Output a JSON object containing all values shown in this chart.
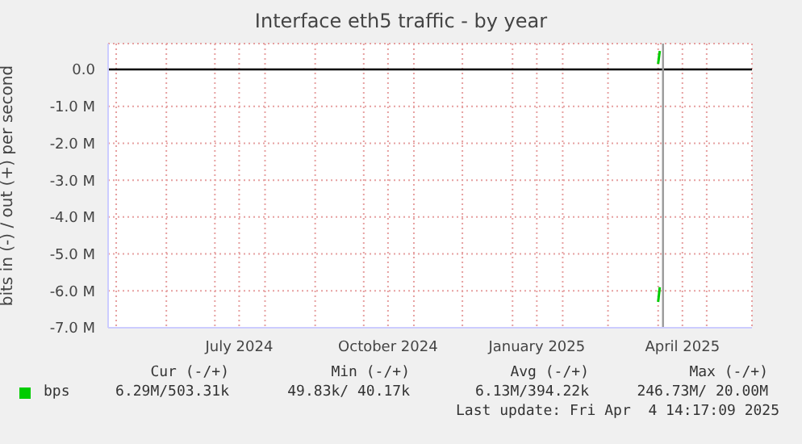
{
  "chart_data": {
    "type": "line",
    "title": "Interface eth5 traffic - by year",
    "ylabel": "bits in (-) / out (+) per second",
    "xlim": [
      "2024-04-26",
      "2025-05-29"
    ],
    "xticks": [
      {
        "value": "2024-05-01",
        "label": null
      },
      {
        "value": "2024-06-01",
        "label": null
      },
      {
        "value": "2024-07-01",
        "label": null
      },
      {
        "value": "2024-07-16",
        "label": "July 2024"
      },
      {
        "value": "2024-08-01",
        "label": null
      },
      {
        "value": "2024-09-01",
        "label": null
      },
      {
        "value": "2024-10-01",
        "label": null
      },
      {
        "value": "2024-10-16",
        "label": "October 2024"
      },
      {
        "value": "2024-11-01",
        "label": null
      },
      {
        "value": "2024-12-01",
        "label": null
      },
      {
        "value": "2025-01-01",
        "label": null
      },
      {
        "value": "2025-01-16",
        "label": "January 2025"
      },
      {
        "value": "2025-02-01",
        "label": null
      },
      {
        "value": "2025-03-01",
        "label": null
      },
      {
        "value": "2025-04-01",
        "label": null
      },
      {
        "value": "2025-04-16",
        "label": "April 2025"
      },
      {
        "value": "2025-05-01",
        "label": null
      }
    ],
    "ylim": [
      -7,
      0.7
    ],
    "yticks": [
      {
        "value": -7,
        "label": "-7.0 M"
      },
      {
        "value": -6,
        "label": "-6.0 M"
      },
      {
        "value": -5,
        "label": "-5.0 M"
      },
      {
        "value": -4,
        "label": "-4.0 M"
      },
      {
        "value": -3,
        "label": "-3.0 M"
      },
      {
        "value": -2,
        "label": "-2.0 M"
      },
      {
        "value": -1,
        "label": "-1.0 M"
      },
      {
        "value": 0,
        "label": "0.0"
      }
    ],
    "series": [
      {
        "name": "bps",
        "color": "#00cc00",
        "x": [
          "2025-04-01",
          "2025-04-02"
        ],
        "values": [
          0.15,
          0.5
        ]
      },
      {
        "color": "#00cc00",
        "x": [
          "2025-04-01",
          "2025-04-02"
        ],
        "values": [
          -6.3,
          -5.9
        ]
      }
    ],
    "ref_lines": [
      {
        "axis": "y",
        "value": 0,
        "color": "#000000"
      },
      {
        "axis": "x",
        "value": "2025-04-04",
        "color": "#999999"
      }
    ],
    "grid": true,
    "legend": "bottom left",
    "marker": "none",
    "line_style": "solid",
    "annotations": [
      "Cur (-/+)",
      "Min (-/+)",
      "Avg (-/+)",
      "Max (-/+)",
      "6.29M/503.31k",
      "49.83k/ 40.17k",
      "6.13M/394.22k",
      "246.73M/ 20.00M",
      "Last update: Fri Apr  4 14:17:09 2025"
    ]
  }
}
